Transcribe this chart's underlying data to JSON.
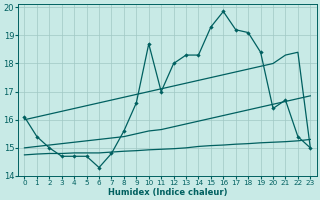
{
  "xlabel": "Humidex (Indice chaleur)",
  "xlim": [
    -0.5,
    23.5
  ],
  "ylim": [
    14,
    20.1
  ],
  "yticks": [
    14,
    15,
    16,
    17,
    18,
    19,
    20
  ],
  "xticks": [
    0,
    1,
    2,
    3,
    4,
    5,
    6,
    7,
    8,
    9,
    10,
    11,
    12,
    13,
    14,
    15,
    16,
    17,
    18,
    19,
    20,
    21,
    22,
    23
  ],
  "background_color": "#c8eae6",
  "grid_color": "#a0c8c4",
  "line_color": "#006060",
  "line1_x": [
    0,
    1,
    2,
    3,
    4,
    5,
    6,
    7,
    8,
    9,
    10,
    11,
    12,
    13,
    14,
    15,
    16,
    17,
    18,
    19,
    20,
    21,
    22,
    23
  ],
  "line1_y": [
    16.1,
    15.4,
    15.0,
    14.7,
    14.7,
    14.7,
    14.3,
    14.8,
    15.6,
    16.6,
    18.7,
    17.0,
    18.0,
    18.3,
    18.3,
    19.3,
    19.85,
    19.2,
    19.1,
    18.4,
    16.4,
    16.7,
    15.4,
    15.0
  ],
  "line2_x": [
    0,
    1,
    2,
    3,
    4,
    5,
    6,
    7,
    8,
    9,
    10,
    11,
    12,
    13,
    14,
    15,
    16,
    17,
    18,
    19,
    20,
    21,
    22,
    23
  ],
  "line2_y": [
    16.0,
    16.1,
    16.2,
    16.3,
    16.4,
    16.5,
    16.6,
    16.7,
    16.8,
    16.9,
    17.0,
    17.1,
    17.2,
    17.3,
    17.4,
    17.5,
    17.6,
    17.7,
    17.8,
    17.9,
    18.0,
    18.3,
    18.4,
    15.0
  ],
  "line3_x": [
    0,
    1,
    2,
    3,
    4,
    5,
    6,
    7,
    8,
    9,
    10,
    11,
    12,
    13,
    14,
    15,
    16,
    17,
    18,
    19,
    20,
    21,
    22,
    23
  ],
  "line3_y": [
    15.0,
    15.05,
    15.1,
    15.15,
    15.2,
    15.25,
    15.3,
    15.35,
    15.4,
    15.5,
    15.6,
    15.65,
    15.75,
    15.85,
    15.95,
    16.05,
    16.15,
    16.25,
    16.35,
    16.45,
    16.55,
    16.65,
    16.75,
    16.85
  ],
  "line4_x": [
    0,
    1,
    2,
    3,
    4,
    5,
    6,
    7,
    8,
    9,
    10,
    11,
    12,
    13,
    14,
    15,
    16,
    17,
    18,
    19,
    20,
    21,
    22,
    23
  ],
  "line4_y": [
    14.75,
    14.78,
    14.8,
    14.8,
    14.82,
    14.82,
    14.82,
    14.85,
    14.88,
    14.9,
    14.93,
    14.95,
    14.97,
    15.0,
    15.05,
    15.08,
    15.1,
    15.13,
    15.15,
    15.18,
    15.2,
    15.22,
    15.25,
    15.3
  ]
}
